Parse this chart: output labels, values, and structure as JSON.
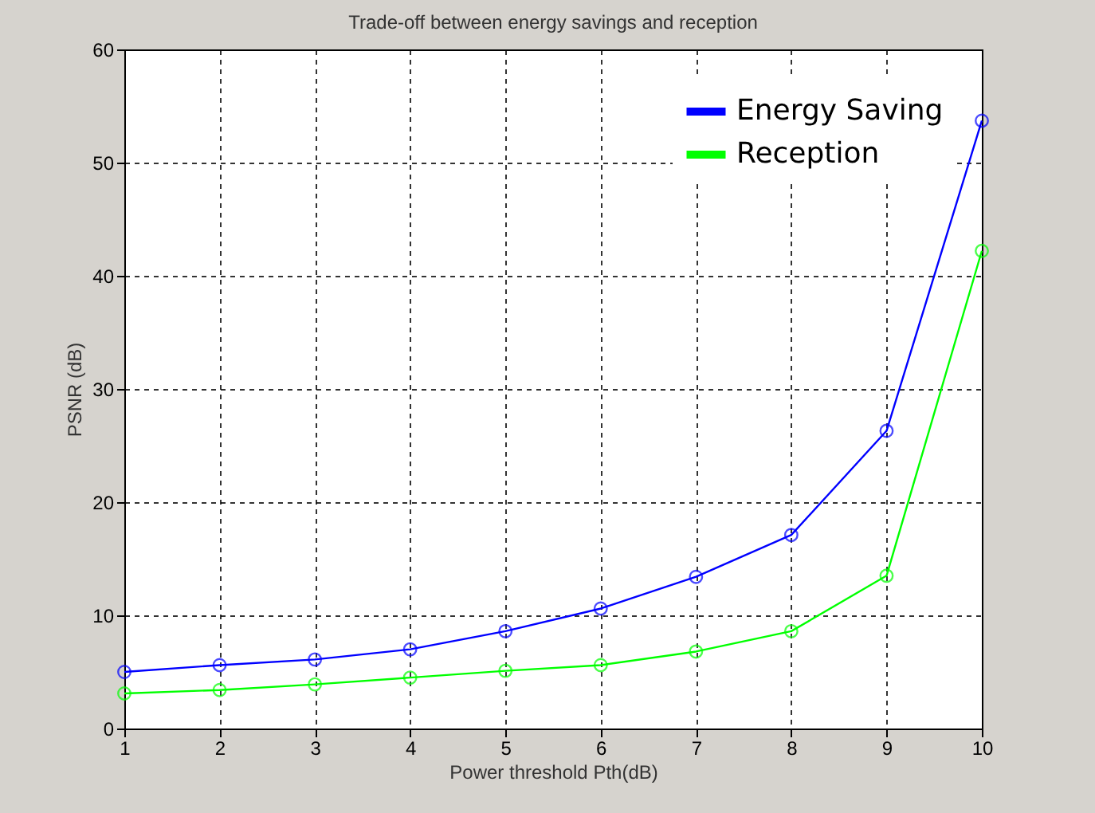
{
  "chart_data": {
    "type": "line",
    "title": "Trade-off between energy savings and reception",
    "xlabel": "Power threshold Pth(dB)",
    "ylabel": "PSNR (dB)",
    "x": [
      1,
      2,
      3,
      4,
      5,
      6,
      7,
      8,
      9,
      10
    ],
    "series": [
      {
        "name": "Energy Saving",
        "color": "#0000ff",
        "values": [
          5.0,
          5.6,
          6.1,
          7.0,
          8.6,
          10.6,
          13.4,
          17.1,
          26.3,
          53.7
        ]
      },
      {
        "name": "Reception",
        "color": "#00ff00",
        "values": [
          3.1,
          3.4,
          3.9,
          4.5,
          5.1,
          5.6,
          6.8,
          8.6,
          13.5,
          42.2
        ]
      }
    ],
    "xlim": [
      1,
      10
    ],
    "xticks": [
      1,
      2,
      3,
      4,
      5,
      6,
      7,
      8,
      9,
      10
    ],
    "ylim": [
      0,
      60
    ],
    "yticks": [
      0,
      10,
      20,
      30,
      40,
      50,
      60
    ],
    "grid": true,
    "legend": "top right",
    "marker": "circle",
    "line_style": "solid"
  }
}
